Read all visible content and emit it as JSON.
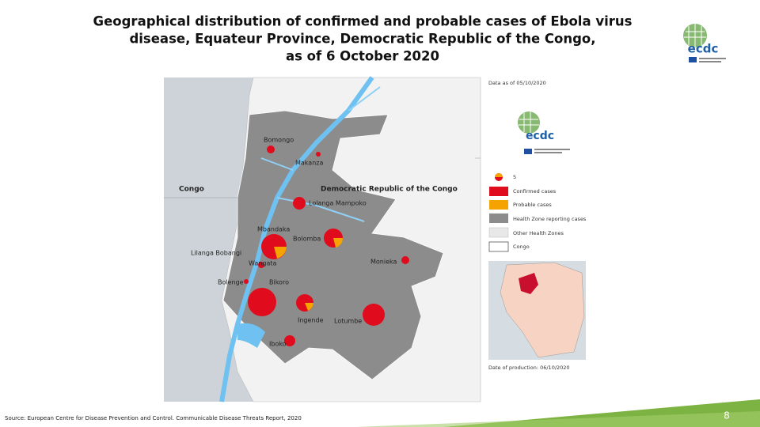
{
  "title": [
    "Geographical distribution of confirmed and probable cases of Ebola virus",
    "disease, Equateur Province, Democratic Republic of the Congo,",
    "as of 6 October 2020"
  ],
  "logo": "ecdc",
  "map": {
    "country_labels": [
      "Congo",
      "Democratic Republic of the Congo"
    ],
    "places": [
      "Bomongo",
      "Makanza",
      "Lolanga Mampoko",
      "Mbandaka",
      "Bolomba",
      "Lilanga Bobangi",
      "Wangata",
      "Monieka",
      "Bolenge",
      "Bikoro",
      "Ingende",
      "Lotumbe",
      "Iboko"
    ]
  },
  "legend": {
    "data_date": "Data as of 05/10/2020",
    "logo": "ecdc",
    "size_label": "5",
    "items": [
      "Confirmed cases",
      "Probable cases",
      "Health Zone reporting cases",
      "Other Health Zones",
      "Congo"
    ],
    "production_date": "Date of production: 06/10/2020"
  },
  "source": "Source: European Centre for Disease Prevention and Control. Communicable Disease Threats Report, 2020",
  "page_number": "8"
}
